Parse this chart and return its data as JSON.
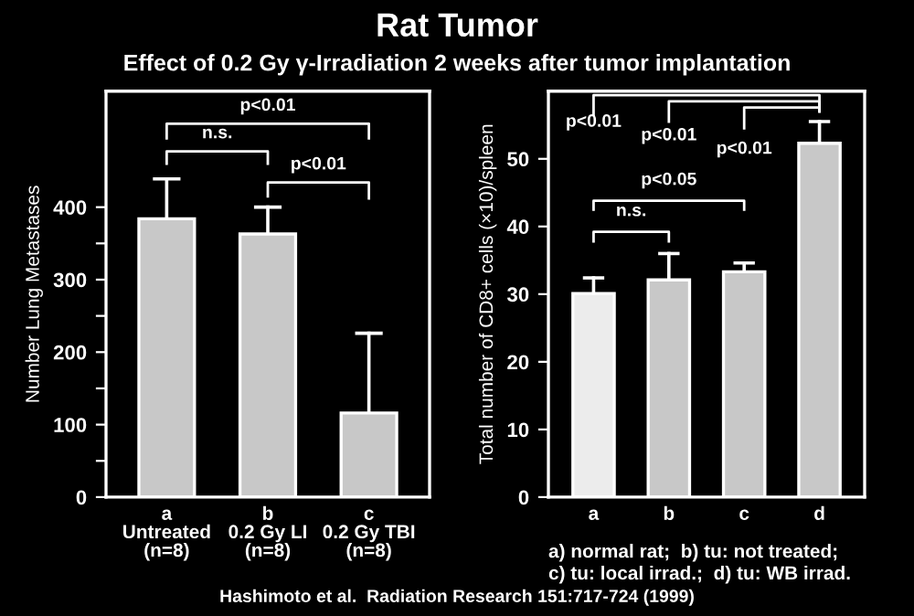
{
  "chart_data": [
    {
      "type": "bar",
      "title": "Rat Tumor",
      "subtitle": "Effect of 0.2 Gy γ-Irradiation 2 weeks after tumor implantation",
      "ylabel": "Number Lung Metastases",
      "categories": [
        "a\nUntreated\n(n=8)",
        "b\n0.2 Gy LI\n(n=8)",
        "c\n0.2 Gy TBI\n(n=8)"
      ],
      "values": [
        384,
        363,
        116
      ],
      "color": "#c8c8c8",
      "errors": [
        [
          384,
          439
        ],
        [
          363,
          400
        ],
        [
          116,
          226
        ]
      ],
      "ylim": [
        0,
        560
      ],
      "yticks": [
        0,
        {
          "value": 50,
          "label": null
        },
        100,
        {
          "value": 150,
          "label": null
        },
        200,
        {
          "value": 250,
          "label": null
        },
        300,
        {
          "value": 350,
          "label": null
        },
        400
      ],
      "annotations": [
        "p<0.01",
        "n.s.",
        "p<0.01",
        "Hashimoto et al.  Radiation Research 151:717-724 (1999)"
      ]
    },
    {
      "type": "bar",
      "ylabel": "Total number of CD8+ cells (×10)/spleen",
      "categories": [
        "a",
        "b",
        "c",
        "d"
      ],
      "values": [
        30.1,
        32.1,
        33.3,
        52.3
      ],
      "colors": [
        "#ececec",
        "#c8c8c8",
        "#c8c8c8",
        "#c8c8c8"
      ],
      "errors": [
        [
          30.1,
          32.4
        ],
        [
          32.1,
          36.0
        ],
        [
          33.3,
          34.6
        ],
        [
          52.3,
          55.5
        ]
      ],
      "ylim": [
        0,
        60
      ],
      "yticks": [
        0,
        10,
        20,
        30,
        40,
        50
      ],
      "annotations": [
        "p<0.01",
        "p<0.01",
        "p<0.01",
        "p<0.05",
        "n.s.",
        "a) normal rat;  b) tu: not treated;\nc) tu: local irrad.;  d) tu: WB irrad."
      ]
    }
  ]
}
